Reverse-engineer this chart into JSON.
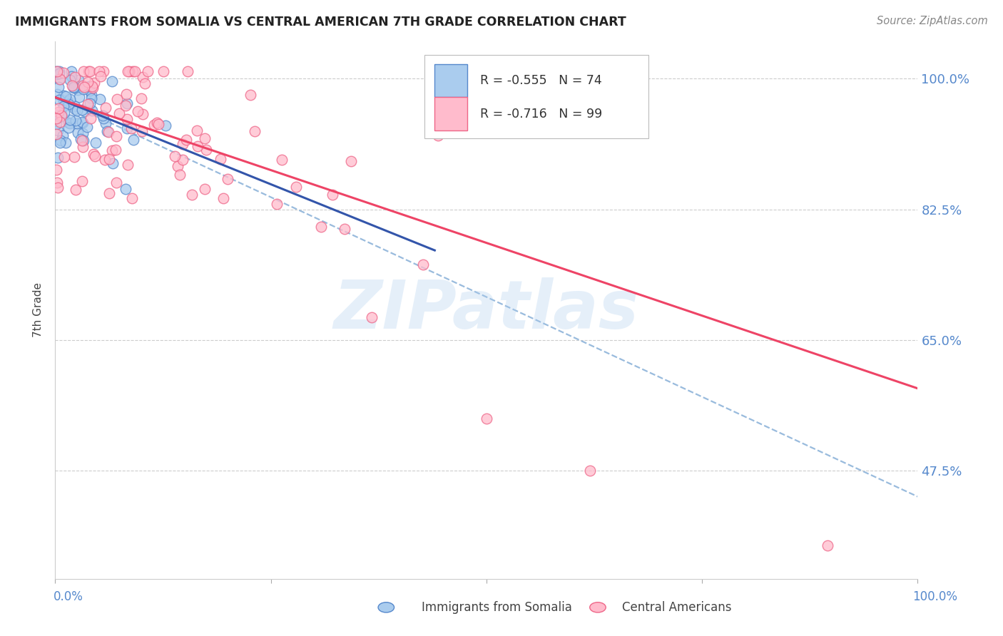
{
  "title": "IMMIGRANTS FROM SOMALIA VS CENTRAL AMERICAN 7TH GRADE CORRELATION CHART",
  "source": "Source: ZipAtlas.com",
  "ylabel": "7th Grade",
  "ytick_vals": [
    1.0,
    0.825,
    0.65,
    0.475
  ],
  "ytick_labels": [
    "100.0%",
    "82.5%",
    "65.0%",
    "47.5%"
  ],
  "xlim": [
    0.0,
    1.0
  ],
  "ylim": [
    0.33,
    1.05
  ],
  "legend_r_somalia": "-0.555",
  "legend_n_somalia": "74",
  "legend_r_central": "-0.716",
  "legend_n_central": "99",
  "color_somalia_edge": "#5588CC",
  "color_somalia_face": "#AACCEE",
  "color_central_edge": "#EE6688",
  "color_central_face": "#FFBBCC",
  "color_trendline_somalia": "#3355AA",
  "color_trendline_central": "#EE4466",
  "color_trendline_dashed": "#99BBDD",
  "watermark": "ZIPatlas",
  "trendline_somalia_x0": 0.0,
  "trendline_somalia_y0": 0.975,
  "trendline_somalia_x1": 0.44,
  "trendline_somalia_y1": 0.77,
  "trendline_central_x0": 0.0,
  "trendline_central_y0": 0.975,
  "trendline_central_x1": 1.0,
  "trendline_central_y1": 0.585,
  "trendline_dashed_x0": 0.0,
  "trendline_dashed_y0": 0.975,
  "trendline_dashed_x1": 1.0,
  "trendline_dashed_y1": 0.44,
  "grid_color": "#CCCCCC",
  "axis_label_color": "#5588CC",
  "title_color": "#222222",
  "source_color": "#888888",
  "ylabel_color": "#444444"
}
